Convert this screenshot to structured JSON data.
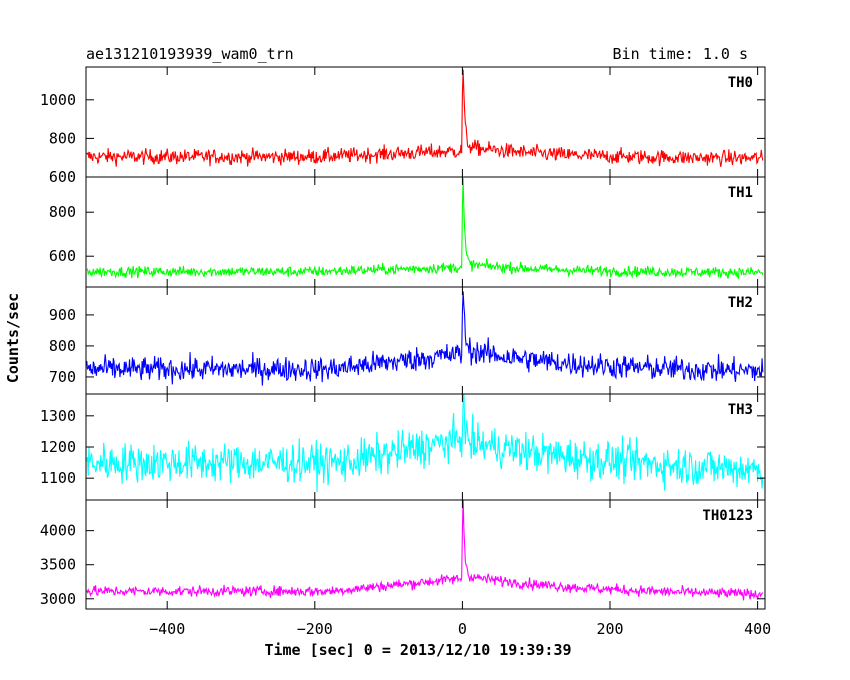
{
  "header": {
    "file_id": "ae131210193939_wam0_trn",
    "bin_time": "Bin time: 1.0 s"
  },
  "axes": {
    "xlabel": "Time [sec] 0 = 2013/12/10 19:39:39",
    "ylabel": "Counts/sec"
  },
  "chart_data": {
    "type": "line",
    "xlim": [
      -510,
      410
    ],
    "x_ticks": [
      -400,
      -200,
      0,
      200,
      400
    ],
    "x_tick_labels": [
      "−400",
      "−200",
      "0",
      "200",
      "400"
    ],
    "bin_seconds": 1.0,
    "panels": [
      {
        "name": "TH0",
        "color": "#ff0000",
        "ylim": [
          600,
          1170
        ],
        "y_ticks": [
          600,
          800,
          1000
        ],
        "y_tick_labels": [
          "600",
          "800",
          "1000"
        ],
        "baseline": 705,
        "late_baseline": 695,
        "noise": 28,
        "pre_rise_peak": 735,
        "pre_rise_start": -200,
        "peak_value": 1170,
        "peak_time": 1,
        "post_burst_level": 760,
        "post_burst_decay": 120
      },
      {
        "name": "TH1",
        "color": "#00ff00",
        "ylim": [
          460,
          960
        ],
        "y_ticks": [
          600,
          800
        ],
        "y_tick_labels": [
          "600",
          "800"
        ],
        "baseline": 530,
        "late_baseline": 525,
        "noise": 17,
        "pre_rise_peak": 550,
        "pre_rise_start": -200,
        "peak_value": 950,
        "peak_time": 1,
        "post_burst_level": 565,
        "post_burst_decay": 120
      },
      {
        "name": "TH2",
        "color": "#0000ff",
        "ylim": [
          645,
          990
        ],
        "y_ticks": [
          700,
          800,
          900
        ],
        "y_tick_labels": [
          "700",
          "800",
          "900"
        ],
        "baseline": 725,
        "late_baseline": 715,
        "noise": 28,
        "pre_rise_peak": 775,
        "pre_rise_start": -180,
        "peak_value": 985,
        "peak_time": 1,
        "post_burst_level": 790,
        "post_burst_decay": 150
      },
      {
        "name": "TH3",
        "color": "#00ffff",
        "ylim": [
          1030,
          1370
        ],
        "y_ticks": [
          1100,
          1200,
          1300
        ],
        "y_tick_labels": [
          "1100",
          "1200",
          "1300"
        ],
        "baseline": 1150,
        "late_baseline": 1110,
        "noise": 45,
        "pre_rise_peak": 1225,
        "pre_rise_start": -160,
        "peak_value": 1365,
        "peak_time": 1,
        "post_burst_level": 1220,
        "post_burst_decay": 230
      },
      {
        "name": "TH0123",
        "color": "#ff00ff",
        "ylim": [
          2850,
          4450
        ],
        "y_ticks": [
          3000,
          3500,
          4000
        ],
        "y_tick_labels": [
          "3000",
          "3500",
          "4000"
        ],
        "baseline": 3110,
        "late_baseline": 3040,
        "noise": 55,
        "pre_rise_peak": 3300,
        "pre_rise_start": -180,
        "peak_value": 4440,
        "peak_time": 1,
        "post_burst_level": 3340,
        "post_burst_decay": 180
      }
    ]
  }
}
